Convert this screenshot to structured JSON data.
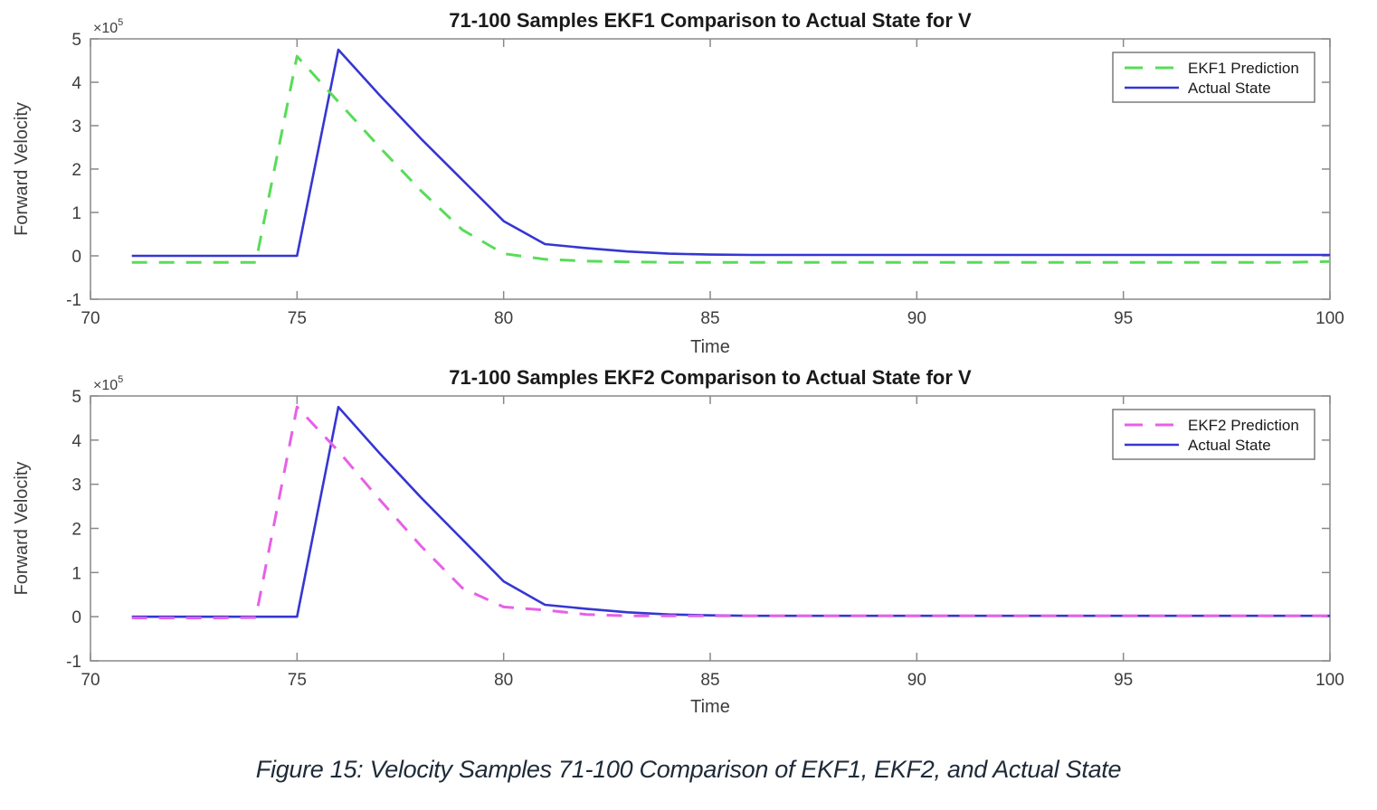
{
  "page": {
    "background": "#ffffff",
    "caption": {
      "text": "Figure 15: Velocity Samples 71-100 Comparison of EKF1, EKF2, and Actual State",
      "color": "#1e2a38"
    }
  },
  "styles": {
    "axis_color": "#898989",
    "tick_label_color": "#3d3d3d",
    "title_color": "#1a1a1a",
    "legend_border_color": "#7a7a7a",
    "legend_text_color": "#1a1a1a"
  },
  "chart_data": [
    {
      "type": "line",
      "title": "71-100 Samples EKF1 Comparison to Actual State for V",
      "xlabel": "Time",
      "ylabel": "Forward Velocity",
      "y_multiplier": {
        "base": "×10",
        "exp": "5"
      },
      "xlim": [
        70,
        100
      ],
      "ylim_e5": [
        -1,
        5
      ],
      "xticks": [
        70,
        75,
        80,
        85,
        90,
        95,
        100
      ],
      "yticks_e5": [
        -1,
        0,
        1,
        2,
        3,
        4,
        5
      ],
      "grid": false,
      "legend_position": "top-right",
      "x": [
        71,
        72,
        73,
        74,
        75,
        76,
        77,
        78,
        79,
        80,
        81,
        82,
        83,
        84,
        85,
        86,
        87,
        88,
        89,
        90,
        91,
        92,
        93,
        94,
        95,
        96,
        97,
        98,
        99,
        100
      ],
      "series": [
        {
          "name": "EKF1 Prediction",
          "color": "#58DC58",
          "line_style": "dashed",
          "values_e5": [
            -0.15,
            -0.15,
            -0.15,
            -0.15,
            4.6,
            3.55,
            2.5,
            1.5,
            0.6,
            0.05,
            -0.08,
            -0.12,
            -0.14,
            -0.15,
            -0.15,
            -0.15,
            -0.15,
            -0.15,
            -0.15,
            -0.15,
            -0.15,
            -0.15,
            -0.15,
            -0.15,
            -0.15,
            -0.15,
            -0.15,
            -0.15,
            -0.15,
            -0.13
          ]
        },
        {
          "name": "Actual State",
          "color": "#3636D2",
          "line_style": "solid",
          "values_e5": [
            0,
            0,
            0,
            0,
            0,
            4.75,
            3.7,
            2.7,
            1.75,
            0.8,
            0.27,
            0.18,
            0.1,
            0.05,
            0.03,
            0.02,
            0.02,
            0.02,
            0.02,
            0.02,
            0.02,
            0.02,
            0.02,
            0.02,
            0.02,
            0.02,
            0.02,
            0.02,
            0.02,
            0.02
          ]
        }
      ]
    },
    {
      "type": "line",
      "title": "71-100 Samples EKF2 Comparison to Actual State for V",
      "xlabel": "Time",
      "ylabel": "Forward Velocity",
      "y_multiplier": {
        "base": "×10",
        "exp": "5"
      },
      "xlim": [
        70,
        100
      ],
      "ylim_e5": [
        -1,
        5
      ],
      "xticks": [
        70,
        75,
        80,
        85,
        90,
        95,
        100
      ],
      "yticks_e5": [
        -1,
        0,
        1,
        2,
        3,
        4,
        5
      ],
      "grid": false,
      "legend_position": "top-right",
      "x": [
        71,
        72,
        73,
        74,
        75,
        76,
        77,
        78,
        79,
        80,
        81,
        82,
        83,
        84,
        85,
        86,
        87,
        88,
        89,
        90,
        91,
        92,
        93,
        94,
        95,
        96,
        97,
        98,
        99,
        100
      ],
      "series": [
        {
          "name": "EKF2 Prediction",
          "color": "#E760E7",
          "line_style": "dashed",
          "values_e5": [
            -0.03,
            -0.03,
            -0.03,
            -0.02,
            4.75,
            3.75,
            2.65,
            1.6,
            0.65,
            0.22,
            0.15,
            0.05,
            0.02,
            0.02,
            0.02,
            0.02,
            0.02,
            0.02,
            0.02,
            0.02,
            0.02,
            0.02,
            0.02,
            0.02,
            0.02,
            0.02,
            0.02,
            0.02,
            0.02,
            0.02
          ]
        },
        {
          "name": "Actual State",
          "color": "#3636D2",
          "line_style": "solid",
          "values_e5": [
            0,
            0,
            0,
            0,
            0,
            4.75,
            3.7,
            2.7,
            1.75,
            0.8,
            0.27,
            0.18,
            0.1,
            0.05,
            0.03,
            0.02,
            0.02,
            0.02,
            0.02,
            0.02,
            0.02,
            0.02,
            0.02,
            0.02,
            0.02,
            0.02,
            0.02,
            0.02,
            0.02,
            0.02
          ]
        }
      ]
    }
  ]
}
